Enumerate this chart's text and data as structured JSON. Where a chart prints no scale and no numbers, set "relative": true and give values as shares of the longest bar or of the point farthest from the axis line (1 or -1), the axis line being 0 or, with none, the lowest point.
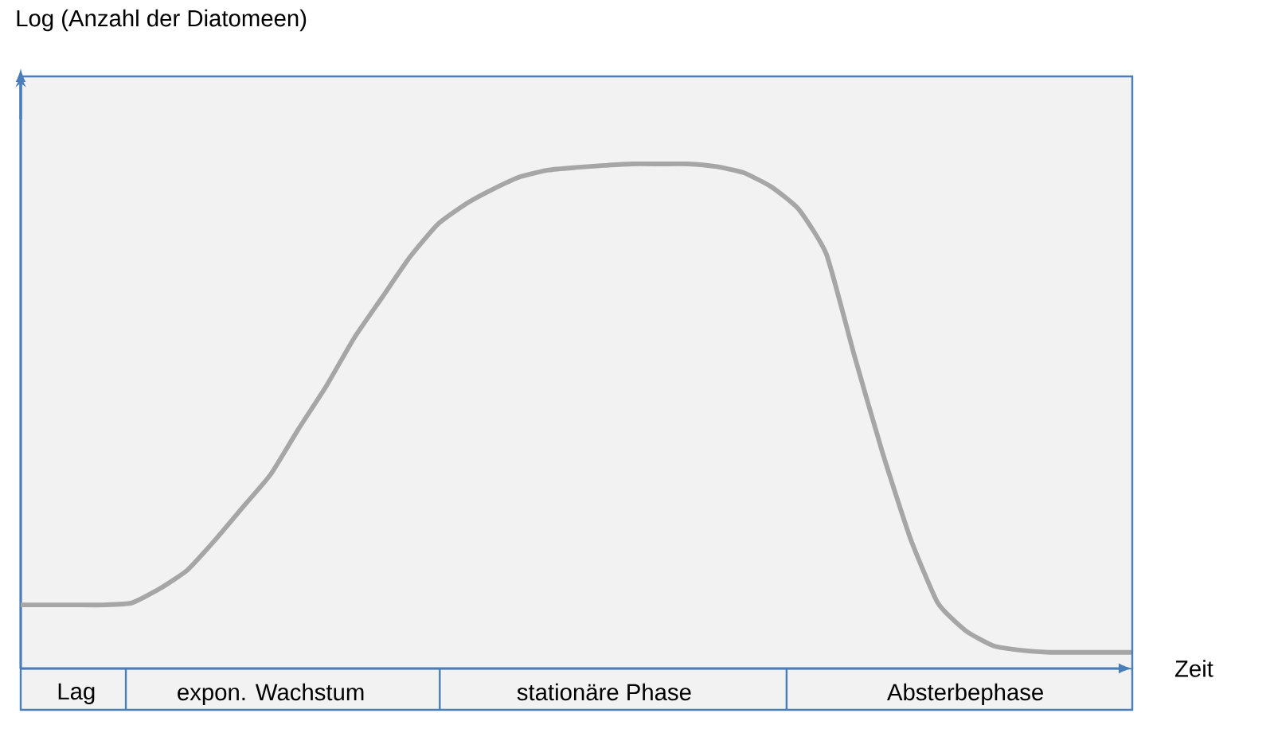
{
  "chart_data": {
    "type": "line",
    "annotations": [
      "Log (Anzahl der Diatomeen)"
    ],
    "xlabel": "Zeit",
    "relative": true,
    "categories": [
      null,
      null,
      "Lag",
      null,
      null,
      null,
      null,
      null,
      null,
      "expon. Wachstum",
      null,
      null,
      null,
      null,
      null,
      null,
      null,
      null,
      null,
      null,
      null,
      "stationäre Phase",
      null,
      null,
      null,
      null,
      null,
      null,
      null,
      null,
      null,
      null,
      null,
      null,
      "Absterbephase",
      null,
      null,
      null,
      null,
      null,
      null
    ],
    "values": [
      0.126,
      0.126,
      0.126,
      0.126,
      0.13,
      0.158,
      0.195,
      0.255,
      0.32,
      0.385,
      0.475,
      0.56,
      0.655,
      0.735,
      0.815,
      0.88,
      0.92,
      0.95,
      0.975,
      0.988,
      0.993,
      0.997,
      1,
      1,
      1,
      0.995,
      0.983,
      0.955,
      0.91,
      0.82,
      0.62,
      0.43,
      0.26,
      0.13,
      0.075,
      0.045,
      0.036,
      0.032,
      0.032,
      0.032,
      0.032
    ],
    "color": "#a6a6a6"
  }
}
